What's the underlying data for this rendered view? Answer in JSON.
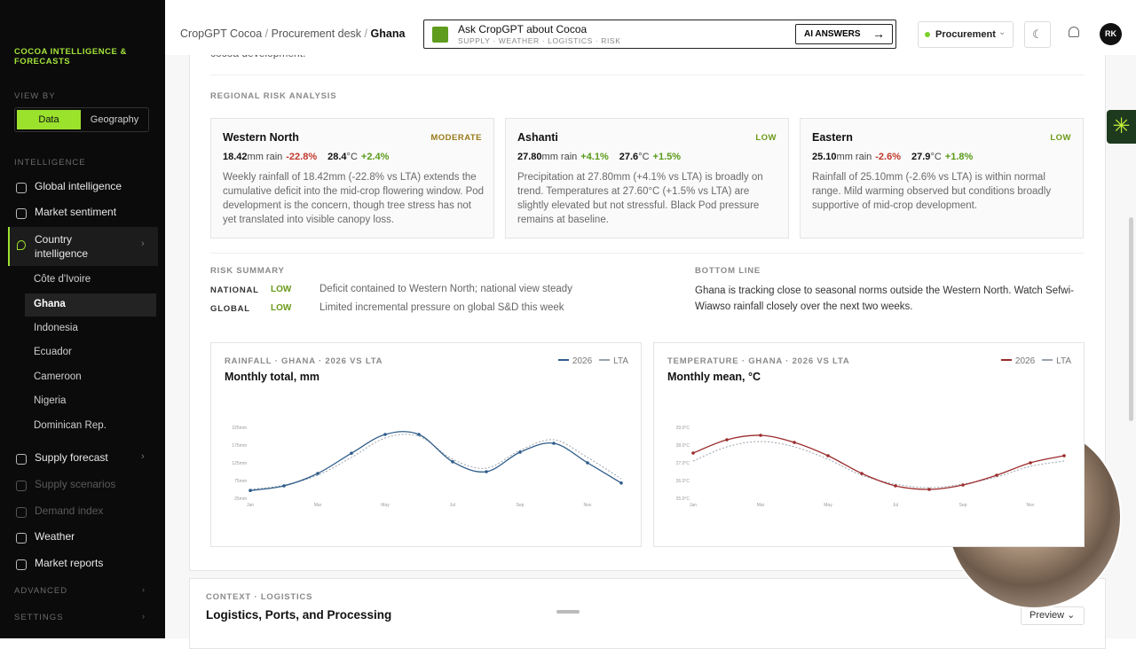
{
  "sidebar": {
    "brand": "COCOA INTELLIGENCE & FORECASTS",
    "view_by": "VIEW BY",
    "view_options": [
      "Data",
      "Geography"
    ],
    "intelligence": "INTELLIGENCE",
    "nav_top": [
      "Global intelligence",
      "Market sentiment",
      "Country intelligence"
    ],
    "countries": [
      "Côte d'Ivoire",
      "Ghana",
      "Indonesia",
      "Ecuador",
      "Cameroon",
      "Nigeria",
      "Dominican Rep."
    ],
    "nav_bottom": [
      "Supply forecast",
      "Supply scenarios",
      "Demand index",
      "Weather",
      "Market reports"
    ],
    "advanced": "ADVANCED",
    "settings": "SETTINGS"
  },
  "topbar": {
    "breadcrumb": [
      "CropGPT Cocoa",
      "Procurement desk",
      "Ghana"
    ],
    "separator": "/",
    "ask_title": "Ask CropGPT about Cocoa",
    "ask_sub": "SUPPLY · WEATHER · LOGISTICS · RISK",
    "ai_button": "AI ANSWERS",
    "role": "Procurement",
    "avatar": "RK"
  },
  "content": {
    "cut_text": "cocoa development.",
    "regional_label": "REGIONAL RISK ANALYSIS",
    "regions": [
      {
        "name": "Western North",
        "level": "MODERATE",
        "rain": "18.42",
        "rain_unit": "mm rain",
        "rain_delta": "-22.8%",
        "temp": "28.4",
        "temp_unit": "°C",
        "temp_delta": "+2.4%",
        "text": "Weekly rainfall of 18.42mm (-22.8% vs LTA) extends the cumulative deficit into the mid-crop flowering window. Pod development is the concern, though tree stress has not yet translated into visible canopy loss."
      },
      {
        "name": "Ashanti",
        "level": "LOW",
        "rain": "27.80",
        "rain_unit": "mm rain",
        "rain_delta": "+4.1%",
        "temp": "27.6",
        "temp_unit": "°C",
        "temp_delta": "+1.5%",
        "text": "Precipitation at 27.80mm (+4.1% vs LTA) is broadly on trend. Temperatures at 27.60°C (+1.5% vs LTA) are slightly elevated but not stressful. Black Pod pressure remains at baseline."
      },
      {
        "name": "Eastern",
        "level": "LOW",
        "rain": "25.10",
        "rain_unit": "mm rain",
        "rain_delta": "-2.6%",
        "temp": "27.9",
        "temp_unit": "°C",
        "temp_delta": "+1.8%",
        "text": "Rainfall of 25.10mm (-2.6% vs LTA) is within normal range. Mild warming observed but conditions broadly supportive of mid-crop development."
      }
    ],
    "risk_label": "RISK SUMMARY",
    "risk_rows": [
      {
        "scope": "NATIONAL",
        "level": "LOW",
        "text": "Deficit contained to Western North; national view steady"
      },
      {
        "scope": "GLOBAL",
        "level": "LOW",
        "text": "Limited incremental pressure on global S&D this week"
      }
    ],
    "bottom_label": "BOTTOM LINE",
    "bottom_text": "Ghana is tracking close to seasonal norms outside the Western North. Watch Sefwi-Wiawso rainfall closely over the next two weeks.",
    "context_label": "CONTEXT · LOGISTICS",
    "logistics_title": "Logistics, Ports, and Processing",
    "preview": "Preview"
  },
  "charts": [
    {
      "type": "line",
      "kicker": "RAINFALL · GHANA · 2026 VS LTA",
      "title": "Monthly total, mm",
      "categories": [
        "Jan",
        null,
        "Mar",
        null,
        "May",
        null,
        "Jul",
        null,
        "Sep",
        null,
        "Nov",
        null
      ],
      "ylim": [
        25,
        225
      ],
      "yticks": [
        {
          "value": 25,
          "label": "25mm"
        },
        {
          "value": 75,
          "label": "75mm"
        },
        {
          "value": 125,
          "label": "125mm"
        },
        {
          "value": 175,
          "label": "175mm"
        },
        {
          "value": 225,
          "label": "225mm"
        }
      ],
      "series": [
        {
          "name": "2026",
          "color": "#2f5d8a",
          "values": [
            47,
            60,
            95,
            152,
            205,
            205,
            128,
            100,
            155,
            180,
            125,
            68
          ]
        },
        {
          "name": "LTA",
          "color": "#9aa3ad",
          "dashed": true,
          "values": [
            50,
            62,
            90,
            140,
            195,
            200,
            135,
            110,
            160,
            190,
            140,
            80
          ]
        }
      ]
    },
    {
      "type": "line",
      "kicker": "TEMPERATURE · GHANA · 2026 VS LTA",
      "title": "Monthly mean, °C",
      "categories": [
        "Jan",
        null,
        "Mar",
        null,
        "May",
        null,
        "Jul",
        null,
        "Sep",
        null,
        "Nov",
        null
      ],
      "ylim": [
        25,
        29
      ],
      "yticks": [
        {
          "value": 25,
          "label": "25.0°C"
        },
        {
          "value": 26,
          "label": "26.0°C"
        },
        {
          "value": 27,
          "label": "27.0°C"
        },
        {
          "value": 28,
          "label": "28.0°C"
        },
        {
          "value": 29,
          "label": "29.0°C"
        }
      ],
      "series": [
        {
          "name": "2026",
          "color": "#9b2c2c",
          "values": [
            27.55,
            28.3,
            28.55,
            28.15,
            27.4,
            26.4,
            25.7,
            25.5,
            25.75,
            26.3,
            27.0,
            27.4
          ]
        },
        {
          "name": "LTA",
          "color": "#9aa3ad",
          "dashed": true,
          "values": [
            27.1,
            27.9,
            28.2,
            27.9,
            27.2,
            26.3,
            25.8,
            25.6,
            25.8,
            26.2,
            26.8,
            27.1
          ]
        }
      ]
    }
  ]
}
